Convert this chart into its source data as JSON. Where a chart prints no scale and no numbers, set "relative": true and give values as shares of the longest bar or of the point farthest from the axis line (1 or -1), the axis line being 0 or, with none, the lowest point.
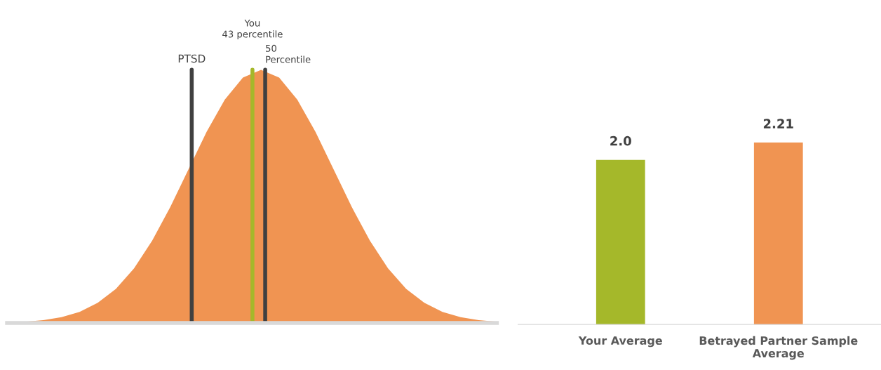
{
  "chart_data": [
    {
      "type": "area",
      "relative": true,
      "tick_labels": false,
      "grid": false,
      "categories": [
        null,
        null,
        null,
        null,
        null,
        null,
        null,
        null,
        null,
        null,
        null,
        null,
        null,
        null,
        null,
        null,
        null,
        null,
        null,
        null,
        null,
        null,
        null,
        null,
        null,
        null,
        null,
        null
      ],
      "series": [
        {
          "color": "#f09452",
          "values": [
            0.002,
            0.005,
            0.011,
            0.023,
            0.044,
            0.08,
            0.135,
            0.216,
            0.325,
            0.458,
            0.607,
            0.755,
            0.882,
            0.969,
            1.0,
            0.969,
            0.882,
            0.755,
            0.607,
            0.458,
            0.325,
            0.216,
            0.135,
            0.08,
            0.044,
            0.023,
            0.011,
            0.005
          ]
        }
      ],
      "annotations": [
        "PTSD",
        "You\n43 percentile",
        "50\nPercentile"
      ]
    },
    {
      "type": "bar",
      "tick_labels": "x",
      "grid": false,
      "categories": [
        "Your Average",
        "Betrayed Partner Sample\nAverage"
      ],
      "values": [
        2.0,
        2.21
      ],
      "colors": [
        "#a5b82a",
        "#f09452"
      ],
      "value_labels": [
        "2.0",
        "2.21"
      ]
    }
  ]
}
